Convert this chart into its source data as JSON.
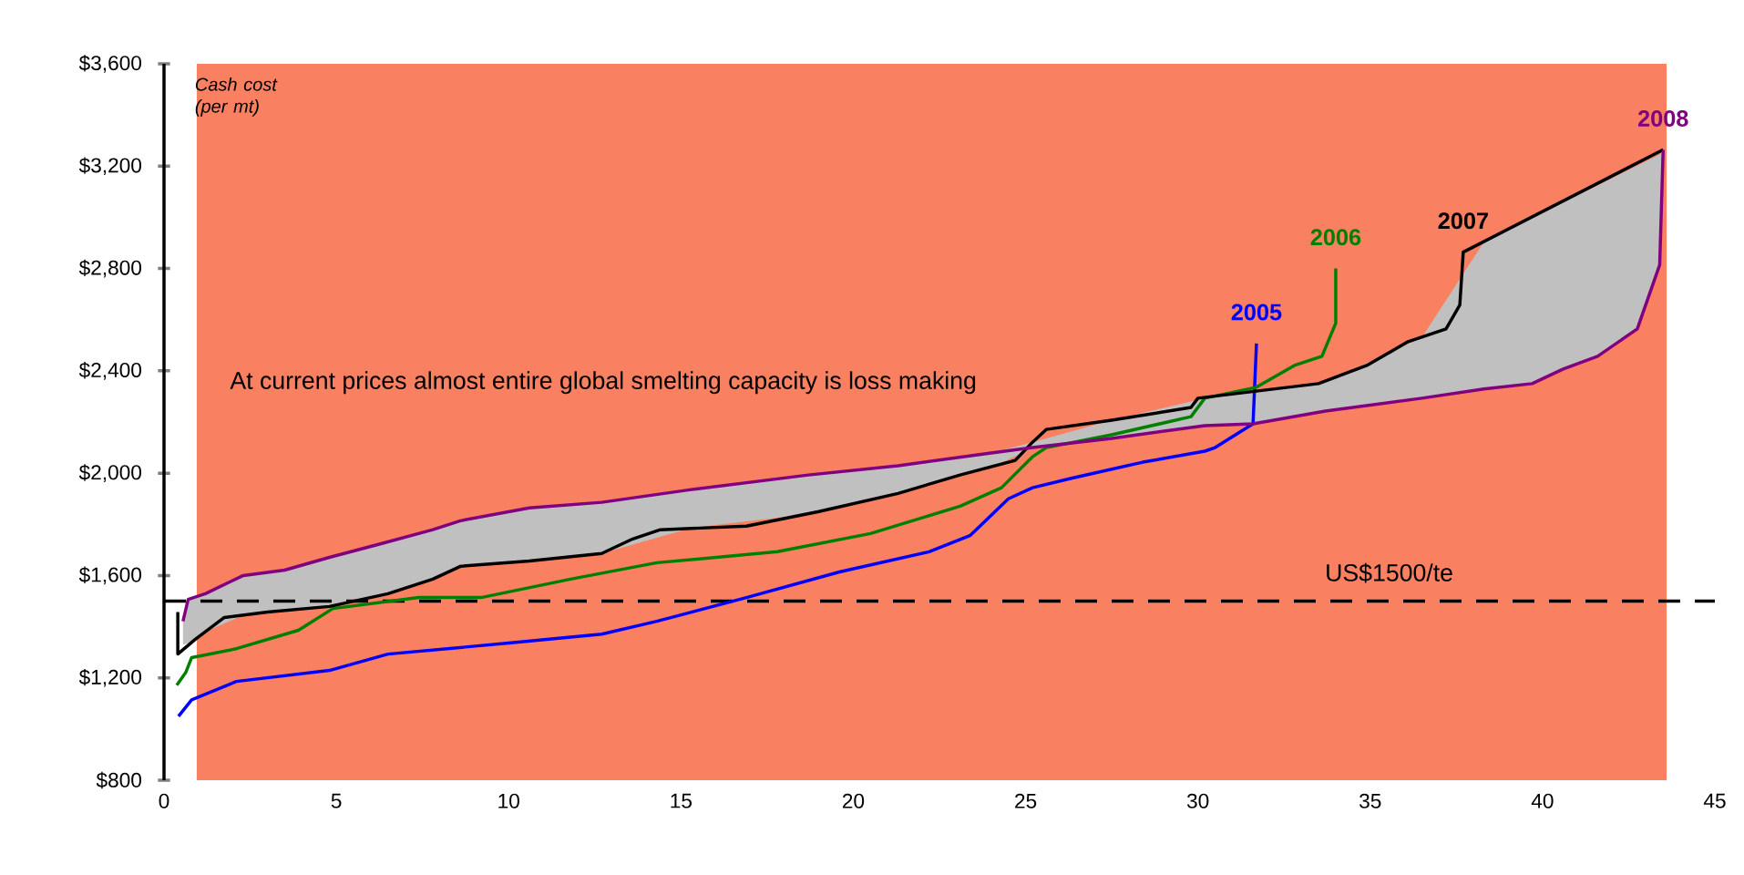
{
  "chart_data": {
    "type": "line",
    "ylabel": "Cash cost (per mt)",
    "marker": "none",
    "annotations": [
      "At current prices almost entire global smelting capacity is loss making"
    ],
    "xlim": [
      0,
      45
    ],
    "xticks": [
      0,
      5,
      10,
      15,
      20,
      25,
      30,
      35,
      40,
      45
    ],
    "ylim": [
      800,
      3600
    ],
    "yticks": [
      {
        "value": 800,
        "label": "$800"
      },
      {
        "value": 1200,
        "label": "$1,200"
      },
      {
        "value": 1600,
        "label": "$1,600"
      },
      {
        "value": 2000,
        "label": "$2,000"
      },
      {
        "value": 2400,
        "label": "$2,400"
      },
      {
        "value": 2800,
        "label": "$2,800"
      },
      {
        "value": 3200,
        "label": "$3,200"
      },
      {
        "value": 3600,
        "label": "$3,600"
      }
    ],
    "bands": [
      {
        "axis": "x",
        "from": 0.95,
        "to": 43.6,
        "color": "#f98060"
      }
    ],
    "ref_lines": [
      {
        "axis": "y",
        "value": 1500,
        "label": "US$1500/te",
        "color": "#000000",
        "line_style": "dashed"
      }
    ],
    "series": [
      {
        "name": "2005",
        "color": "#0000ff",
        "x": [
          0.42,
          0.8,
          2.1,
          4.8,
          6.5,
          10,
          12.7,
          14.3,
          16.9,
          19.6,
          22.2,
          23.4,
          24.5,
          25.2,
          26.3,
          28.4,
          30.2,
          30.5,
          31.6,
          31.7
        ],
        "values": [
          1050,
          1114,
          1186,
          1229,
          1293,
          1336,
          1371,
          1421,
          1514,
          1614,
          1693,
          1757,
          1900,
          1943,
          1979,
          2043,
          2086,
          2100,
          2193,
          2507
        ]
      },
      {
        "name": "2006",
        "color": "#008000",
        "x": [
          0.37,
          0.63,
          0.8,
          2.1,
          3.9,
          4.9,
          7.4,
          9.2,
          11.8,
          14.3,
          17.8,
          20.5,
          23.1,
          24.3,
          25.2,
          25.6,
          27.5,
          29.8,
          30.2,
          31.7,
          32.8,
          33.6,
          34,
          34
        ],
        "values": [
          1171,
          1221,
          1279,
          1314,
          1386,
          1471,
          1514,
          1514,
          1586,
          1650,
          1693,
          1764,
          1871,
          1943,
          2064,
          2100,
          2150,
          2221,
          2293,
          2336,
          2421,
          2457,
          2586,
          2800
        ]
      },
      {
        "name": "2007",
        "color": "#000000",
        "x": [
          0.4,
          0.4,
          0.9,
          1.75,
          3,
          4.8,
          6.5,
          7.8,
          8.6,
          10.6,
          12.7,
          13.6,
          14.4,
          16.9,
          19,
          21.3,
          23.1,
          24.7,
          25.2,
          25.6,
          27.5,
          29.8,
          30,
          33.5,
          34.9,
          36.1,
          37.2,
          37.6,
          37.7,
          43.5
        ],
        "values": [
          1457,
          1293,
          1350,
          1436,
          1457,
          1479,
          1529,
          1586,
          1636,
          1657,
          1686,
          1743,
          1779,
          1793,
          1850,
          1921,
          1993,
          2050,
          2121,
          2171,
          2207,
          2257,
          2293,
          2350,
          2421,
          2514,
          2564,
          2657,
          2864,
          3264
        ]
      },
      {
        "name": "2008",
        "color": "#800080",
        "x": [
          0.55,
          0.7,
          1.2,
          2.3,
          3.5,
          4.8,
          6.2,
          7.8,
          8.6,
          10.6,
          12.7,
          15.3,
          18.7,
          21.3,
          24,
          25.2,
          27.5,
          30.2,
          31.6,
          33.7,
          36.5,
          38.3,
          39.7,
          40.6,
          41.6,
          42.75,
          43.4,
          43.5
        ],
        "values": [
          1421,
          1507,
          1529,
          1600,
          1621,
          1671,
          1721,
          1779,
          1814,
          1864,
          1886,
          1936,
          1993,
          2029,
          2079,
          2100,
          2136,
          2186,
          2193,
          2243,
          2293,
          2329,
          2350,
          2407,
          2457,
          2564,
          2814,
          3264
        ],
        "lower": [
          1330,
          1335,
          1380,
          1445,
          1465,
          1479,
          1520,
          1586,
          1636,
          1657,
          1686,
          1786,
          1840,
          1921,
          2020,
          2100,
          2136,
          2186,
          2193,
          2243,
          2293,
          2329,
          2350,
          2407,
          2457,
          2564,
          2814,
          3264
        ],
        "upper": [
          1421,
          1507,
          1529,
          1600,
          1621,
          1671,
          1721,
          1779,
          1814,
          1864,
          1886,
          1936,
          1993,
          2029,
          2079,
          2121,
          2207,
          2293,
          2320,
          2355,
          2530,
          2904,
          2998,
          3058,
          3125,
          3202,
          3246,
          3264
        ]
      }
    ]
  }
}
